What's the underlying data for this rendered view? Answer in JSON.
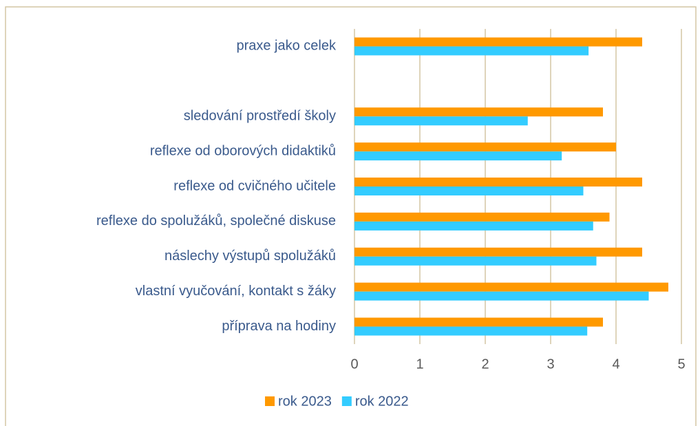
{
  "chart_data": {
    "type": "barh",
    "categories": [
      "praxe jako celek",
      null,
      "sledování prostředí školy",
      "reflexe od oborových didaktiků",
      "reflexe od cvičného učitele",
      "reflexe do spolužáků, společné diskuse",
      "náslechy výstupů spolužáků",
      "vlastní vyučování, kontakt s žáky",
      "příprava na hodiny"
    ],
    "series": [
      {
        "name": "rok 2023",
        "color": "#ff9900",
        "values": [
          4.4,
          null,
          3.8,
          4.0,
          4.4,
          3.9,
          4.4,
          4.8,
          3.8
        ]
      },
      {
        "name": "rok 2022",
        "color": "#33ccff",
        "values": [
          3.58,
          null,
          2.65,
          3.17,
          3.5,
          3.65,
          3.7,
          4.5,
          3.56
        ]
      }
    ],
    "xlim": [
      0,
      5
    ],
    "xticks": [
      0,
      1,
      2,
      3,
      4,
      5
    ],
    "grid": true,
    "legend": "bottom"
  }
}
